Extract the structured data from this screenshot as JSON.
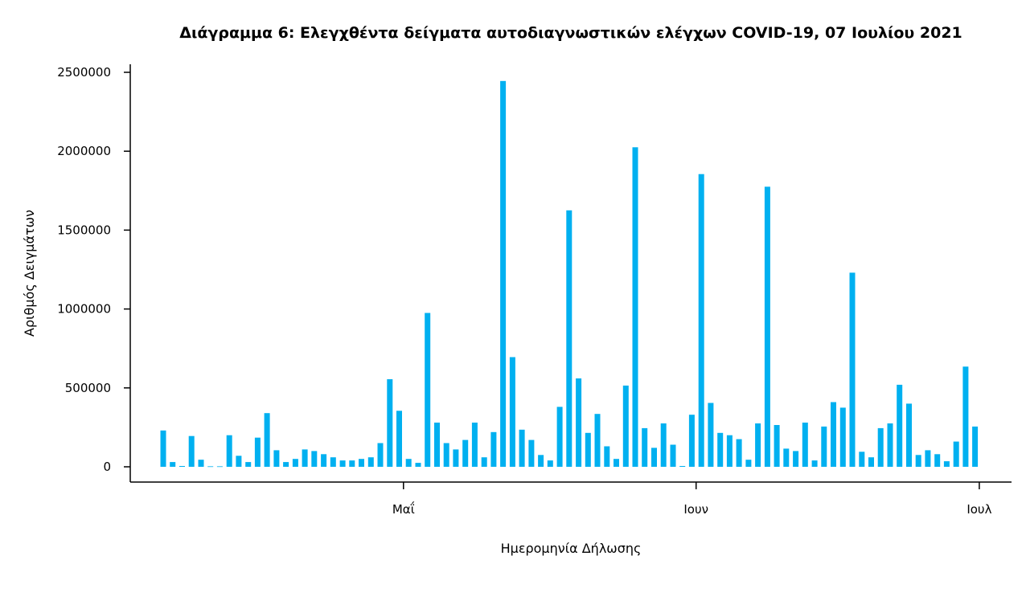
{
  "chart_data": {
    "type": "bar",
    "title": "Διάγραμμα 6: Ελεγχθέντα δείγματα αυτοδιαγνωστικών ελέγχων COVID-19, 07 Ιουλίου 2021",
    "xlabel": "Ημερομηνία Δήλωσης",
    "ylabel": "Αριθμός Δειγμάτων",
    "ylim": [
      0,
      2500000
    ],
    "y_ticks": [
      0,
      500000,
      1000000,
      1500000,
      2000000,
      2500000
    ],
    "x_ticks": [
      {
        "label": "Μαΐ",
        "date": "2021-05-01"
      },
      {
        "label": "Ιουν",
        "date": "2021-06-01"
      },
      {
        "label": "Ιουλ",
        "date": "2021-07-01"
      }
    ],
    "color": "#00b0f0",
    "grid": false,
    "dates": [
      "2021-04-05",
      "2021-04-06",
      "2021-04-07",
      "2021-04-08",
      "2021-04-09",
      "2021-04-10",
      "2021-04-11",
      "2021-04-12",
      "2021-04-13",
      "2021-04-14",
      "2021-04-15",
      "2021-04-16",
      "2021-04-17",
      "2021-04-18",
      "2021-04-19",
      "2021-04-20",
      "2021-04-21",
      "2021-04-22",
      "2021-04-23",
      "2021-04-24",
      "2021-04-25",
      "2021-04-26",
      "2021-04-27",
      "2021-04-28",
      "2021-04-29",
      "2021-04-30",
      "2021-05-01",
      "2021-05-02",
      "2021-05-03",
      "2021-05-04",
      "2021-05-05",
      "2021-05-06",
      "2021-05-07",
      "2021-05-08",
      "2021-05-09",
      "2021-05-10",
      "2021-05-11",
      "2021-05-12",
      "2021-05-13",
      "2021-05-14",
      "2021-05-15",
      "2021-05-16",
      "2021-05-17",
      "2021-05-18",
      "2021-05-19",
      "2021-05-20",
      "2021-05-21",
      "2021-05-22",
      "2021-05-23",
      "2021-05-24",
      "2021-05-25",
      "2021-05-26",
      "2021-05-27",
      "2021-05-28",
      "2021-05-29",
      "2021-05-30",
      "2021-05-31",
      "2021-06-01",
      "2021-06-02",
      "2021-06-03",
      "2021-06-04",
      "2021-06-05",
      "2021-06-06",
      "2021-06-07",
      "2021-06-08",
      "2021-06-09",
      "2021-06-10",
      "2021-06-11",
      "2021-06-12",
      "2021-06-13",
      "2021-06-14",
      "2021-06-15",
      "2021-06-16",
      "2021-06-17",
      "2021-06-18",
      "2021-06-19",
      "2021-06-20",
      "2021-06-21",
      "2021-06-22",
      "2021-06-23",
      "2021-06-24",
      "2021-06-25",
      "2021-06-26",
      "2021-06-27",
      "2021-06-28",
      "2021-06-29",
      "2021-06-30",
      "2021-07-01",
      "2021-07-02",
      "2021-07-03",
      "2021-07-04",
      "2021-07-05",
      "2021-07-06"
    ],
    "values": [
      230000,
      30000,
      5000,
      195000,
      45000,
      3000,
      3000,
      200000,
      70000,
      30000,
      185000,
      340000,
      105000,
      30000,
      50000,
      110000,
      100000,
      80000,
      60000,
      40000,
      40000,
      50000,
      60000,
      150000,
      555000,
      355000,
      50000,
      25000,
      975000,
      280000,
      150000,
      110000,
      170000,
      280000,
      60000,
      220000,
      2445000,
      695000,
      235000,
      170000,
      75000,
      40000,
      380000,
      1625000,
      560000,
      215000,
      335000,
      130000,
      50000,
      515000,
      2025000,
      245000,
      120000,
      275000,
      140000,
      5000,
      330000,
      1855000,
      405000,
      215000,
      200000,
      175000,
      45000,
      275000,
      1775000,
      265000,
      115000,
      100000,
      280000,
      40000,
      255000,
      410000,
      375000,
      1230000,
      95000,
      60000,
      245000,
      275000,
      520000,
      400000,
      75000,
      105000,
      80000,
      35000,
      160000,
      635000,
      255000,
      0,
      0,
      0,
      0,
      0,
      0
    ]
  }
}
